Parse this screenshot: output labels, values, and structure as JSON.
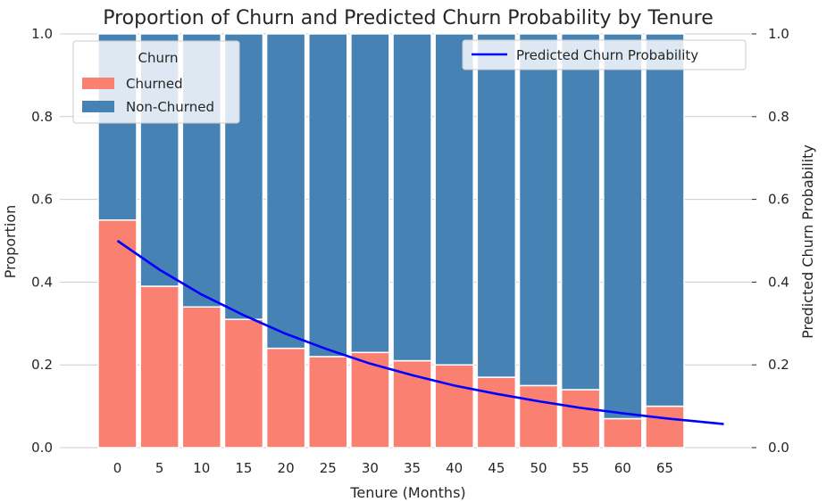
{
  "chart_data": {
    "type": "bar",
    "title": "Proportion of Churn and Predicted Churn Probability by Tenure",
    "xlabel": "Tenure (Months)",
    "ylabel": "Proportion",
    "y2label": "Predicted Churn Probability",
    "categories": [
      "0",
      "5",
      "10",
      "15",
      "20",
      "25",
      "30",
      "35",
      "40",
      "45",
      "50",
      "55",
      "60",
      "65"
    ],
    "ylim": [
      0,
      1.0
    ],
    "y2lim": [
      0,
      1.0
    ],
    "yticks": [
      "0.0",
      "0.2",
      "0.4",
      "0.6",
      "0.8",
      "1.0"
    ],
    "y2ticks": [
      "0.0",
      "0.2",
      "0.4",
      "0.6",
      "0.8",
      "1.0"
    ],
    "stacked": true,
    "grid": true,
    "legend_title": "Churn",
    "legend_placement": "top-left",
    "series": [
      {
        "name": "Churned",
        "color": "#fa8072",
        "values": [
          0.55,
          0.39,
          0.34,
          0.31,
          0.24,
          0.22,
          0.23,
          0.21,
          0.2,
          0.17,
          0.15,
          0.14,
          0.07,
          0.1
        ]
      },
      {
        "name": "Non-Churned",
        "color": "#4682b4",
        "values": [
          0.45,
          0.61,
          0.66,
          0.69,
          0.76,
          0.78,
          0.77,
          0.79,
          0.8,
          0.83,
          0.85,
          0.86,
          0.93,
          0.9
        ]
      }
    ],
    "line": {
      "name": "Predicted Churn Probability",
      "color": "#0000ff",
      "legend_placement": "top-right",
      "x": [
        0,
        5,
        10,
        15,
        20,
        25,
        30,
        35,
        40,
        45,
        50,
        55,
        60,
        65,
        72
      ],
      "values": [
        0.5,
        0.43,
        0.37,
        0.32,
        0.275,
        0.237,
        0.203,
        0.175,
        0.15,
        0.13,
        0.112,
        0.096,
        0.083,
        0.071,
        0.057
      ]
    }
  }
}
